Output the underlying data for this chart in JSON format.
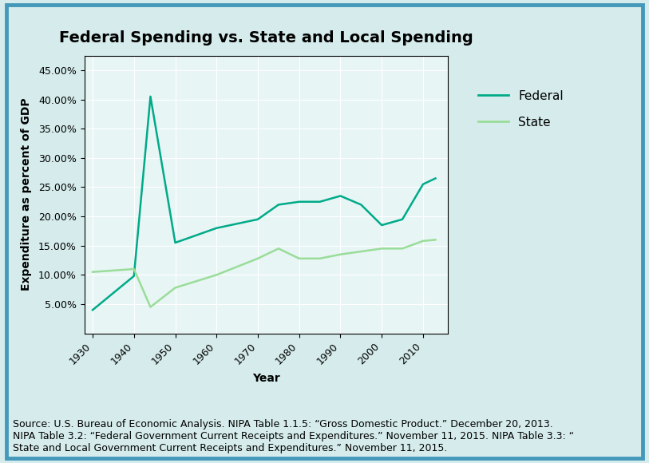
{
  "title": "Federal Spending vs. State and Local Spending",
  "xlabel": "Year",
  "ylabel": "Expenditure as percent of GDP",
  "background_color": "#d6ecec",
  "plot_background_color": "#e8f5f5",
  "border_color": "#4499bb",
  "federal_color": "#00aa88",
  "state_color": "#99dd99",
  "federal_years": [
    1930,
    1940,
    1944,
    1950,
    1960,
    1970,
    1975,
    1980,
    1985,
    1990,
    1995,
    2000,
    2005,
    2010,
    2013
  ],
  "federal_values": [
    4.0,
    9.8,
    40.5,
    15.5,
    18.0,
    19.5,
    22.0,
    22.5,
    22.5,
    23.5,
    22.0,
    18.5,
    19.5,
    25.5,
    26.5
  ],
  "state_years": [
    1930,
    1940,
    1944,
    1950,
    1960,
    1970,
    1975,
    1980,
    1985,
    1990,
    1995,
    2000,
    2005,
    2010,
    2013
  ],
  "state_values": [
    10.5,
    11.0,
    4.5,
    7.8,
    10.0,
    12.8,
    14.5,
    12.8,
    12.8,
    13.5,
    14.0,
    14.5,
    14.5,
    15.8,
    16.0
  ],
  "ylim": [
    0,
    47.5
  ],
  "yticks": [
    5,
    10,
    15,
    20,
    25,
    30,
    35,
    40,
    45
  ],
  "xlim": [
    1928,
    2016
  ],
  "xticks": [
    1930,
    1940,
    1950,
    1960,
    1970,
    1980,
    1990,
    2000,
    2010
  ],
  "source_text": "Source: U.S. Bureau of Economic Analysis. NIPA Table 1.1.5: “Gross Domestic Product.” December 20, 2013.\nNIPA Table 3.2: “Federal Government Current Receipts and Expenditures.” November 11, 2015. NIPA Table 3.3: “\nState and Local Government Current Receipts and Expenditures.” November 11, 2015.",
  "title_fontsize": 14,
  "axis_label_fontsize": 10,
  "tick_fontsize": 9,
  "legend_fontsize": 11,
  "source_fontsize": 9
}
